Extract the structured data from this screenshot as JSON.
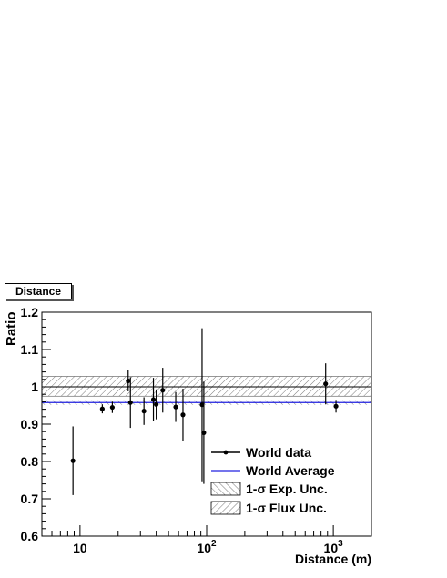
{
  "chart_data": {
    "type": "scatter",
    "title": "Distance",
    "xlabel": "Distance (m)",
    "ylabel": "Ratio",
    "xscale": "log",
    "xlim": [
      5,
      2000
    ],
    "ylim": [
      0.6,
      1.2
    ],
    "y_ticks": [
      0.6,
      0.7,
      0.8,
      0.9,
      1.0,
      1.1,
      1.2
    ],
    "y_tick_labels": [
      "0.6",
      "0.7",
      "0.8",
      "0.9",
      "1",
      "1.1",
      "1.2"
    ],
    "x_tick_labels": [
      {
        "value": 10,
        "base": "10",
        "exp": ""
      },
      {
        "value": 100,
        "base": "10",
        "exp": "2"
      },
      {
        "value": 1000,
        "base": "10",
        "exp": "3"
      }
    ],
    "reference_line": 1.0,
    "world_average": 0.958,
    "exp_unc_band": [
      0.952,
      0.964
    ],
    "flux_unc_band": [
      0.975,
      1.028
    ],
    "points": [
      {
        "x": 8.8,
        "y": 0.802,
        "err": 0.092
      },
      {
        "x": 15,
        "y": 0.941,
        "err": 0.012
      },
      {
        "x": 18,
        "y": 0.945,
        "err": 0.015
      },
      {
        "x": 24,
        "y": 1.016,
        "err": 0.028
      },
      {
        "x": 25,
        "y": 0.958,
        "err": 0.068
      },
      {
        "x": 32,
        "y": 0.935,
        "err": 0.037
      },
      {
        "x": 38,
        "y": 0.966,
        "err": 0.058
      },
      {
        "x": 40,
        "y": 0.953,
        "err": 0.04
      },
      {
        "x": 45,
        "y": 0.991,
        "err": 0.06
      },
      {
        "x": 57,
        "y": 0.946,
        "err": 0.04
      },
      {
        "x": 65,
        "y": 0.925,
        "err": 0.07
      },
      {
        "x": 92,
        "y": 0.952,
        "err": 0.205
      },
      {
        "x": 95,
        "y": 0.877,
        "err": 0.137
      },
      {
        "x": 870,
        "y": 1.008,
        "err": 0.055
      },
      {
        "x": 1050,
        "y": 0.948,
        "err": 0.017
      }
    ],
    "legend": {
      "placement": "bottom-right",
      "entries": [
        "World data",
        "World Average",
        "1-σ Exp. Unc.",
        "1-σ Flux Unc."
      ]
    },
    "colors": {
      "world_average": "#2020e0",
      "data": "#000000",
      "hatch": "#555555"
    }
  }
}
